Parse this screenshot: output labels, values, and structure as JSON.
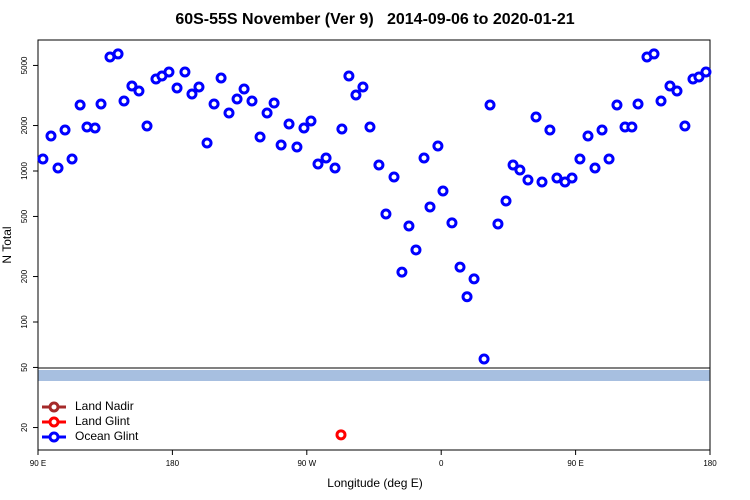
{
  "chart_data": {
    "type": "scatter",
    "title": "60S-55S November (Ver 9)   2014-09-06 to 2020-01-21",
    "x_label": "Longitude (deg E)",
    "y_label": "N Total",
    "log_scale": "y",
    "legend": "lower left",
    "xlim": [
      90,
      540
    ],
    "xticks": [
      {
        "value": 90,
        "label": "90 E"
      },
      180,
      {
        "value": 270,
        "label": "90 W"
      },
      {
        "value": 360,
        "label": "0"
      },
      {
        "value": 450,
        "label": "90 E"
      },
      {
        "value": 540,
        "label": "180"
      }
    ],
    "ylim": [
      14.2,
      7370
    ],
    "yticks": [
      20,
      50,
      100,
      200,
      500,
      1000,
      2000,
      5000
    ],
    "series": [
      {
        "name": "Land Nadir",
        "color": "#a52a2a",
        "x": [],
        "values": []
      },
      {
        "name": "Land Glint",
        "color": "#ff0000",
        "x": [
          292.9
        ],
        "values": [
          17.9
        ]
      },
      {
        "name": "Ocean Glint",
        "color": "#0000ff",
        "x": [
          93.3,
          98.7,
          103.4,
          108.1,
          112.8,
          118.2,
          122.8,
          128.2,
          132.2,
          138.2,
          143.6,
          147.6,
          152.9,
          157.6,
          163.0,
          169.0,
          173.0,
          177.7,
          183.1,
          188.4,
          193.1,
          197.8,
          203.2,
          207.9,
          212.6,
          217.9,
          223.3,
          228.0,
          233.3,
          238.7,
          243.4,
          248.1,
          252.8,
          258.1,
          263.4,
          268.1,
          272.8,
          277.5,
          282.9,
          288.9,
          293.5,
          298.2,
          302.9,
          307.6,
          312.3,
          318.3,
          323.0,
          328.4,
          333.7,
          338.4,
          343.1,
          348.5,
          352.5,
          357.8,
          361.2,
          367.2,
          372.6,
          377.3,
          382.0,
          388.7,
          392.7,
          398.0,
          403.4,
          408.1,
          412.7,
          418.1,
          423.5,
          427.5,
          432.8,
          437.5,
          442.9,
          447.6,
          452.9,
          458.3,
          463.0,
          467.7,
          472.4,
          477.7,
          483.1,
          487.7,
          491.8,
          497.8,
          502.5,
          507.2,
          513.2,
          517.9,
          523.2,
          528.6,
          532.6,
          537.3
        ],
        "values": [
          1200,
          1706,
          1047,
          1869,
          1200,
          2735,
          1955,
          1927,
          2778,
          5690,
          5960,
          2909,
          3656,
          3388,
          1986,
          4064,
          4256,
          4525,
          3546,
          4525,
          3236,
          3598,
          1532,
          2778,
          4128,
          2421,
          2998,
          3491,
          2909,
          1679,
          2421,
          2818,
          1486,
          2047,
          1442,
          1927,
          2143,
          1112,
          1219,
          1047,
          1897,
          4256,
          3186,
          3598,
          1955,
          1096,
          519,
          912,
          214,
          432,
          300,
          1219,
          578,
          1464,
          737,
          453,
          231,
          147,
          193,
          56.9,
          2735,
          446,
          633,
          1096,
          1015,
          871,
          2278,
          845,
          1869,
          899,
          845,
          899,
          1200,
          1706,
          1047,
          1869,
          1200,
          2735,
          1955,
          1955,
          2778,
          5690,
          5960,
          2909,
          3656,
          3388,
          1986,
          4064,
          4195,
          4525
        ]
      }
    ]
  }
}
